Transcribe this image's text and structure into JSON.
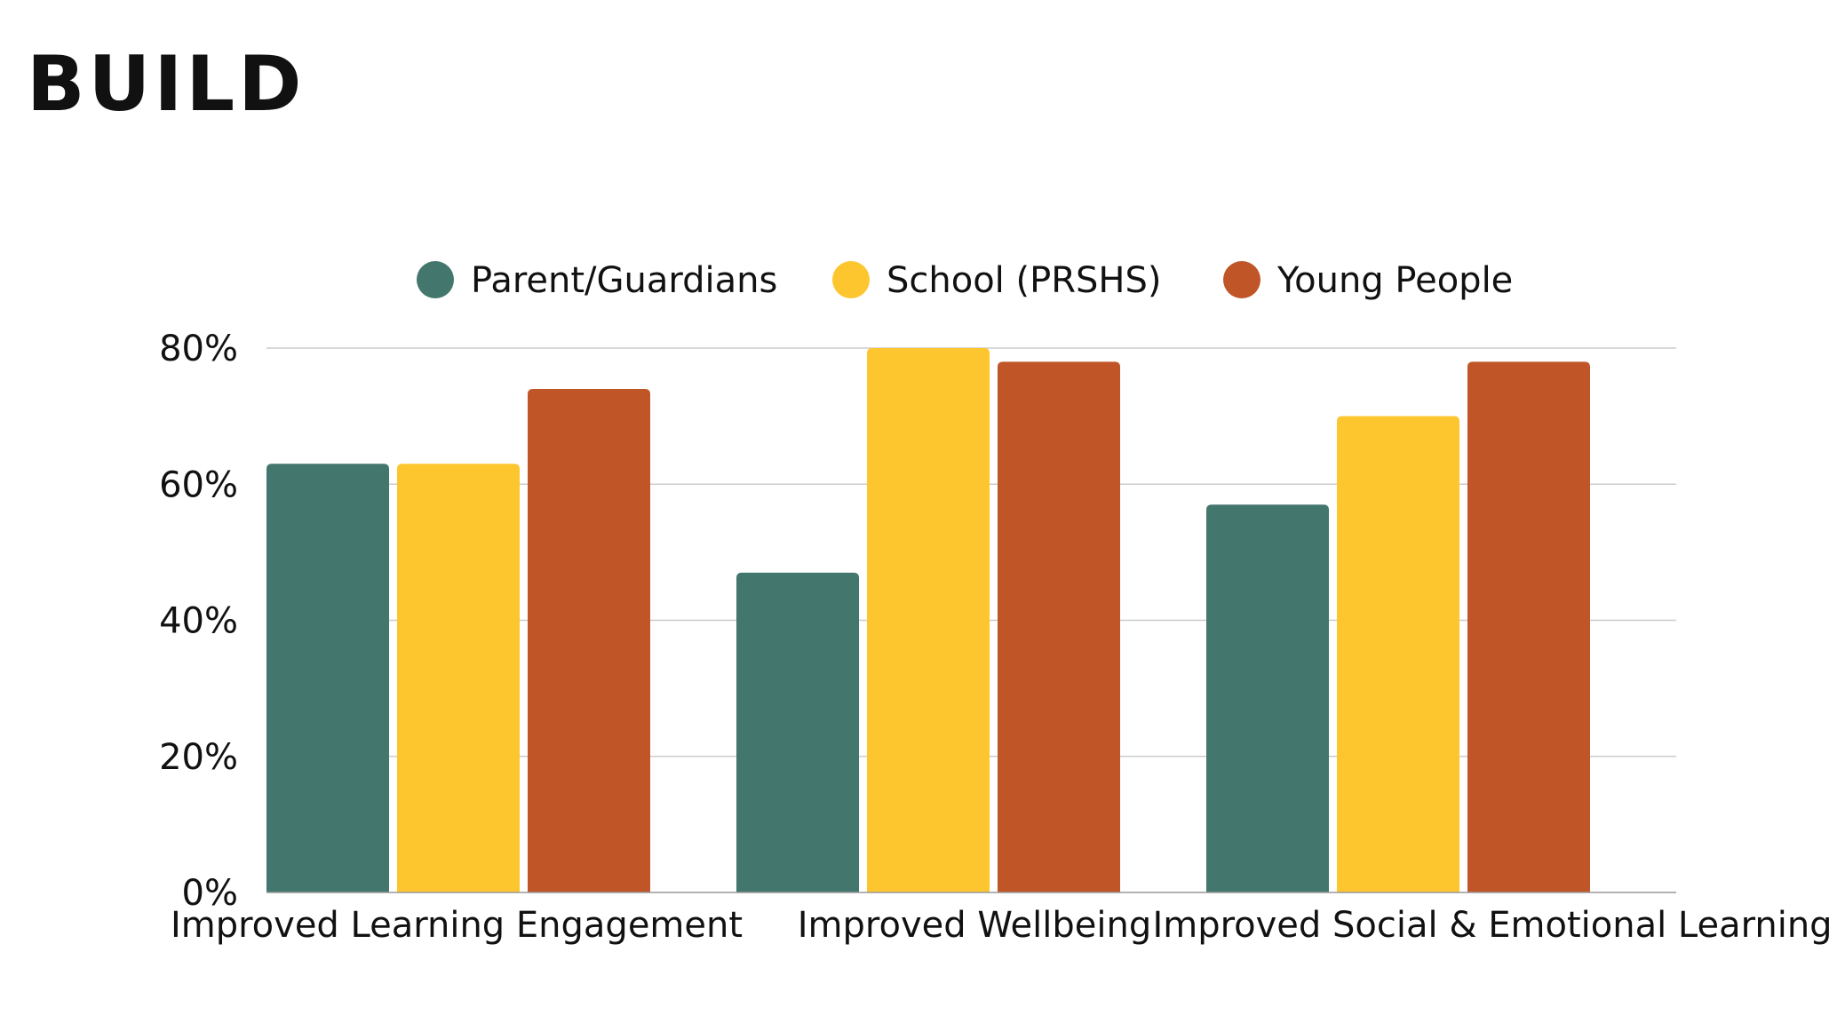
{
  "brand": {
    "logo_text": "BUILD"
  },
  "chart_data": {
    "type": "bar",
    "title": "",
    "xlabel": "",
    "ylabel": "",
    "ylim": [
      0,
      80
    ],
    "yticks": [
      0,
      20,
      40,
      60,
      80
    ],
    "ytick_format": "{v}%",
    "grid": true,
    "legend_position": "top-center",
    "categories": [
      "Improved Learning Engagement",
      "Improved Wellbeing",
      "Improved Social & Emotional Learning"
    ],
    "series": [
      {
        "name": "Parent/Guardians",
        "color": "#43776D",
        "values": [
          63,
          47,
          57
        ]
      },
      {
        "name": "School (PRSHS)",
        "color": "#FDC62E",
        "values": [
          63,
          80,
          70
        ]
      },
      {
        "name": "Young People",
        "color": "#C05527",
        "values": [
          74,
          78,
          78
        ]
      }
    ]
  }
}
